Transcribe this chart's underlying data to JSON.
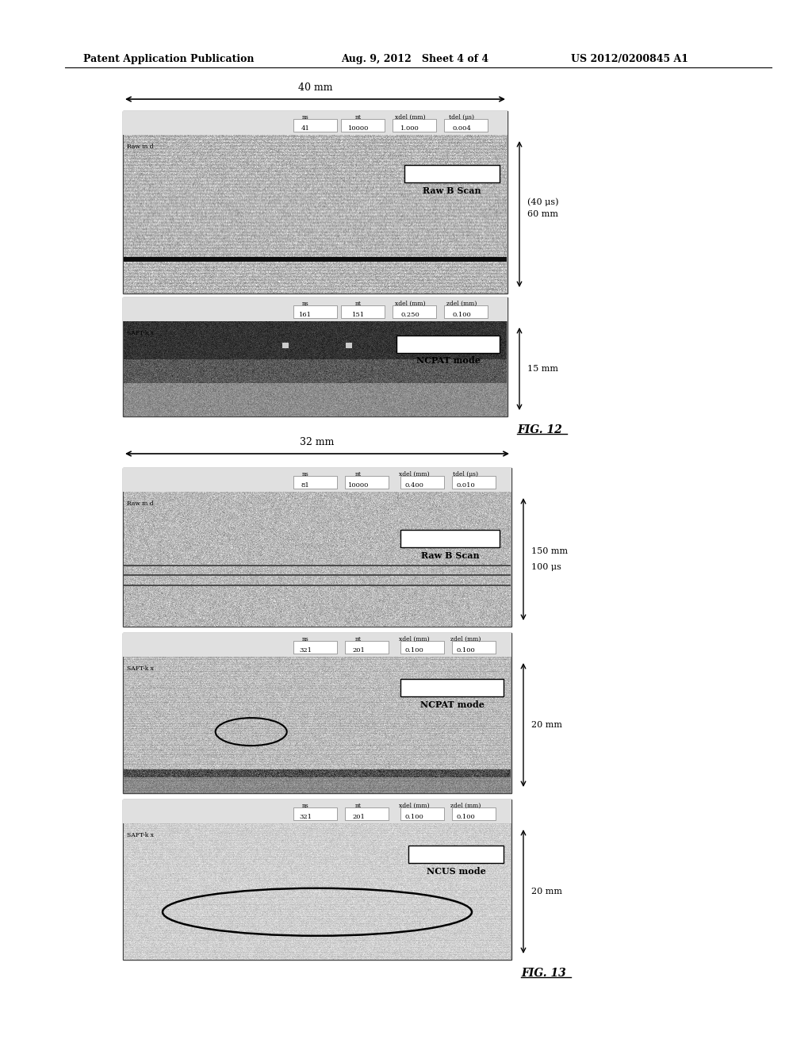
{
  "bg_color": "#ffffff",
  "header_left": "Patent Application Publication",
  "header_mid": "Aug. 9, 2012   Sheet 4 of 4",
  "header_right": "US 2012/0200845 A1",
  "fig12_label": "FIG. 12",
  "fig13_label": "FIG. 13",
  "fig12_width_label": "40 mm",
  "fig12_right_label1": "60 mm",
  "fig12_right_label2": "(40 μs)",
  "fig12_right_label3": "15 mm",
  "fig13_width_label": "32 mm",
  "fig13_right_label1": "150 mm",
  "fig13_right_label2": "100 μs",
  "fig13_right_label3": "20 mm",
  "fig13_right_label4": "20 mm",
  "raw_b_scan_label": "Raw B Scan",
  "ncpat_mode_label": "NCPAT mode",
  "ncus_mode_label": "NCUS mode",
  "raw_b_scan_label2": "Raw B Scan",
  "ncpat_mode_label2": "NCPAT mode",
  "fig12_header_text1": "ns       nt        xdel (mm)    tdel (μs)",
  "fig12_header_vals1": "41     10000       1.000        0.004",
  "fig12_row1_left": "Raw m d",
  "fig12_header_text2": "ns       nt        xdel (mm)    tdel (mm)",
  "fig12_header_vals2": "161     151        0.250        0.100",
  "fig12_row2_left": "SAFT-k x",
  "fig13_header_text1": "ns       nt        xdel (mm)    tdel (μs)",
  "fig13_header_vals1": "81     10000       0.400        0.010",
  "fig13_row1_left": "Raw m d",
  "fig13_header_text2": "ns       nt        xdel (mm)    zdel (mm)",
  "fig13_header_vals2": "321     201        0.100        0.100",
  "fig13_row2_left": "SAFT-k x",
  "fig13_header_text3": "ns       nt        xdel (mm)    zdel (mm)",
  "fig13_header_vals3": "321     201        0.100        0.100",
  "fig13_row3_left": "SAFT-k x"
}
